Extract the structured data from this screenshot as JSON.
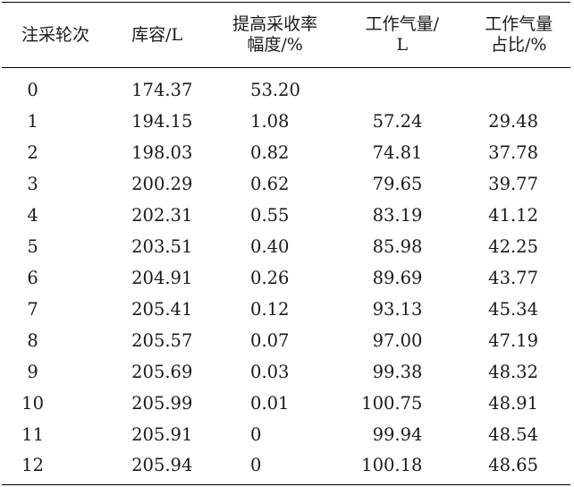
{
  "table": {
    "headers": {
      "round": "注采轮次",
      "capacity": "库容/L",
      "recovery_line1": "提高采收率",
      "recovery_line2": "幅度/%",
      "gas_line1": "工作气量/",
      "gas_line2": "L",
      "ratio_line1": "工作气量",
      "ratio_line2": "占比/%"
    },
    "rows": [
      {
        "round": "0",
        "capacity": "174.37",
        "recovery": "53.20",
        "gas": "",
        "ratio": ""
      },
      {
        "round": "1",
        "capacity": "194.15",
        "recovery": "1.08",
        "gas": "57.24",
        "ratio": "29.48"
      },
      {
        "round": "2",
        "capacity": "198.03",
        "recovery": "0.82",
        "gas": "74.81",
        "ratio": "37.78"
      },
      {
        "round": "3",
        "capacity": "200.29",
        "recovery": "0.62",
        "gas": "79.65",
        "ratio": "39.77"
      },
      {
        "round": "4",
        "capacity": "202.31",
        "recovery": "0.55",
        "gas": "83.19",
        "ratio": "41.12"
      },
      {
        "round": "5",
        "capacity": "203.51",
        "recovery": "0.40",
        "gas": "85.98",
        "ratio": "42.25"
      },
      {
        "round": "6",
        "capacity": "204.91",
        "recovery": "0.26",
        "gas": "89.69",
        "ratio": "43.77"
      },
      {
        "round": "7",
        "capacity": "205.41",
        "recovery": "0.12",
        "gas": "93.13",
        "ratio": "45.34"
      },
      {
        "round": "8",
        "capacity": "205.57",
        "recovery": "0.07",
        "gas": "97.00",
        "ratio": "47.19"
      },
      {
        "round": "9",
        "capacity": "205.69",
        "recovery": "0.03",
        "gas": "99.38",
        "ratio": "48.32"
      },
      {
        "round": "10",
        "capacity": "205.99",
        "recovery": "0.01",
        "gas": "100.75",
        "ratio": "48.91"
      },
      {
        "round": "11",
        "capacity": "205.91",
        "recovery": "0",
        "gas": "99.94",
        "ratio": "48.54"
      },
      {
        "round": "12",
        "capacity": "205.94",
        "recovery": "0",
        "gas": "100.18",
        "ratio": "48.65"
      }
    ]
  }
}
